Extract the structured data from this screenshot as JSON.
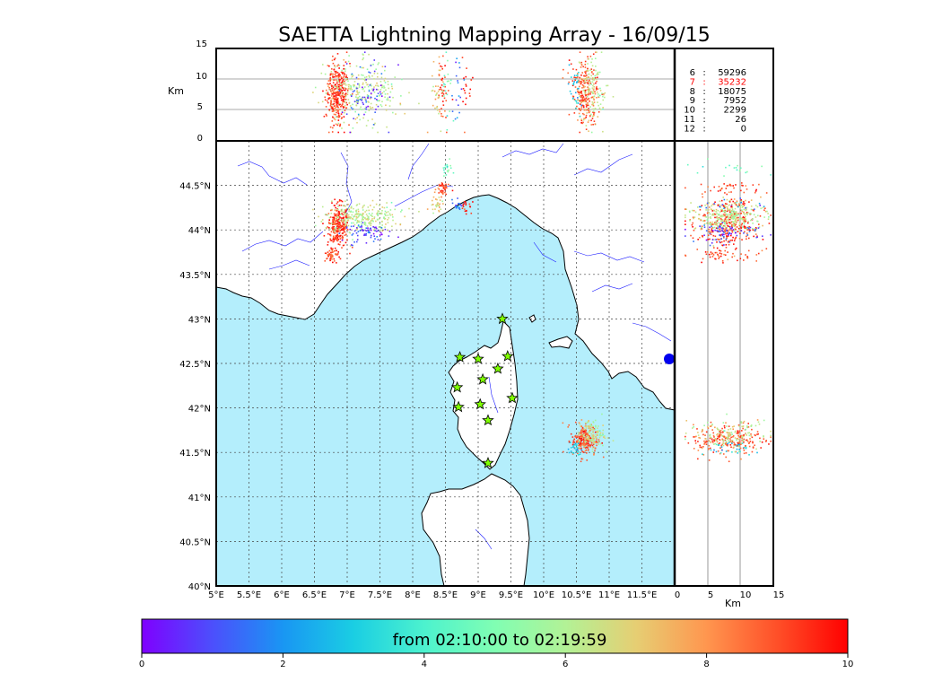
{
  "title": "SAETTA Lightning Mapping Array - 16/09/15",
  "axes": {
    "alt_unit": "Km",
    "alt_ticks": [
      "0",
      "5",
      "10",
      "15"
    ],
    "lon_ticks": [
      "5°E",
      "5.5°E",
      "6°E",
      "6.5°E",
      "7°E",
      "7.5°E",
      "8°E",
      "8.5°E",
      "9°E",
      "9.5°E",
      "10°E",
      "10.5°E",
      "11°E",
      "11.5°E"
    ],
    "lat_ticks": [
      "40°N",
      "40.5°N",
      "41°N",
      "41.5°N",
      "42°N",
      "42.5°N",
      "43°N",
      "43.5°N",
      "44°N",
      "44.5°N"
    ],
    "lon_range": [
      5,
      12
    ],
    "lat_range": [
      40,
      45
    ],
    "alt_range": [
      0,
      15
    ]
  },
  "counts": [
    {
      "label": "6",
      "value": "59296",
      "color": "#000000"
    },
    {
      "label": "7",
      "value": "35232",
      "color": "#ff0000"
    },
    {
      "label": "8",
      "value": "18075",
      "color": "#000000"
    },
    {
      "label": "9",
      "value": "7952",
      "color": "#000000"
    },
    {
      "label": "10",
      "value": "2299",
      "color": "#000000"
    },
    {
      "label": "11",
      "value": "26",
      "color": "#000000"
    },
    {
      "label": "12",
      "value": "0",
      "color": "#000000"
    }
  ],
  "colorbar": {
    "label": "from 02:10:00 to 02:19:59",
    "ticks": [
      "0",
      "2",
      "4",
      "6",
      "8",
      "10"
    ],
    "range": [
      0,
      10
    ]
  },
  "colors": {
    "sea": "#b4eefc",
    "land": "#ffffff",
    "rivers": "#1a1aff",
    "stations": "#7fff00",
    "grid": "#444444"
  },
  "stations": [
    {
      "lon": 9.37,
      "lat": 43.0
    },
    {
      "lon": 8.72,
      "lat": 42.57
    },
    {
      "lon": 9.0,
      "lat": 42.55
    },
    {
      "lon": 9.45,
      "lat": 42.58
    },
    {
      "lon": 9.3,
      "lat": 42.44
    },
    {
      "lon": 9.07,
      "lat": 42.32
    },
    {
      "lon": 8.68,
      "lat": 42.23
    },
    {
      "lon": 9.52,
      "lat": 42.11
    },
    {
      "lon": 8.7,
      "lat": 42.01
    },
    {
      "lon": 9.03,
      "lat": 42.04
    },
    {
      "lon": 9.15,
      "lat": 41.86
    },
    {
      "lon": 9.15,
      "lat": 41.38
    }
  ],
  "clusters": [
    {
      "lon": 6.85,
      "lat": 44.05,
      "slon": 0.08,
      "slat": 0.12,
      "time": 9.3,
      "n": 260
    },
    {
      "lon": 7.2,
      "lat": 44.15,
      "slon": 0.28,
      "slat": 0.08,
      "time": 6.2,
      "n": 260
    },
    {
      "lon": 7.3,
      "lat": 43.98,
      "slon": 0.18,
      "slat": 0.05,
      "time": 0.8,
      "n": 70
    },
    {
      "lon": 6.75,
      "lat": 43.72,
      "slon": 0.05,
      "slat": 0.05,
      "time": 9.0,
      "n": 50
    },
    {
      "lon": 8.45,
      "lat": 44.47,
      "slon": 0.05,
      "slat": 0.05,
      "time": 9.0,
      "n": 40
    },
    {
      "lon": 8.35,
      "lat": 44.3,
      "slon": 0.05,
      "slat": 0.05,
      "time": 7.0,
      "n": 30
    },
    {
      "lon": 8.68,
      "lat": 44.3,
      "slon": 0.05,
      "slat": 0.04,
      "time": 1.5,
      "n": 18
    },
    {
      "lon": 8.8,
      "lat": 44.28,
      "slon": 0.05,
      "slat": 0.04,
      "time": 9.5,
      "n": 18
    },
    {
      "lon": 8.5,
      "lat": 44.7,
      "slon": 0.04,
      "slat": 0.05,
      "time": 4.5,
      "n": 18
    },
    {
      "lon": 10.62,
      "lat": 41.65,
      "slon": 0.1,
      "slat": 0.09,
      "time": 9.0,
      "n": 220
    },
    {
      "lon": 10.72,
      "lat": 41.72,
      "slon": 0.1,
      "slat": 0.08,
      "time": 6.3,
      "n": 120
    },
    {
      "lon": 10.48,
      "lat": 41.55,
      "slon": 0.05,
      "slat": 0.05,
      "time": 3.0,
      "n": 30
    }
  ]
}
